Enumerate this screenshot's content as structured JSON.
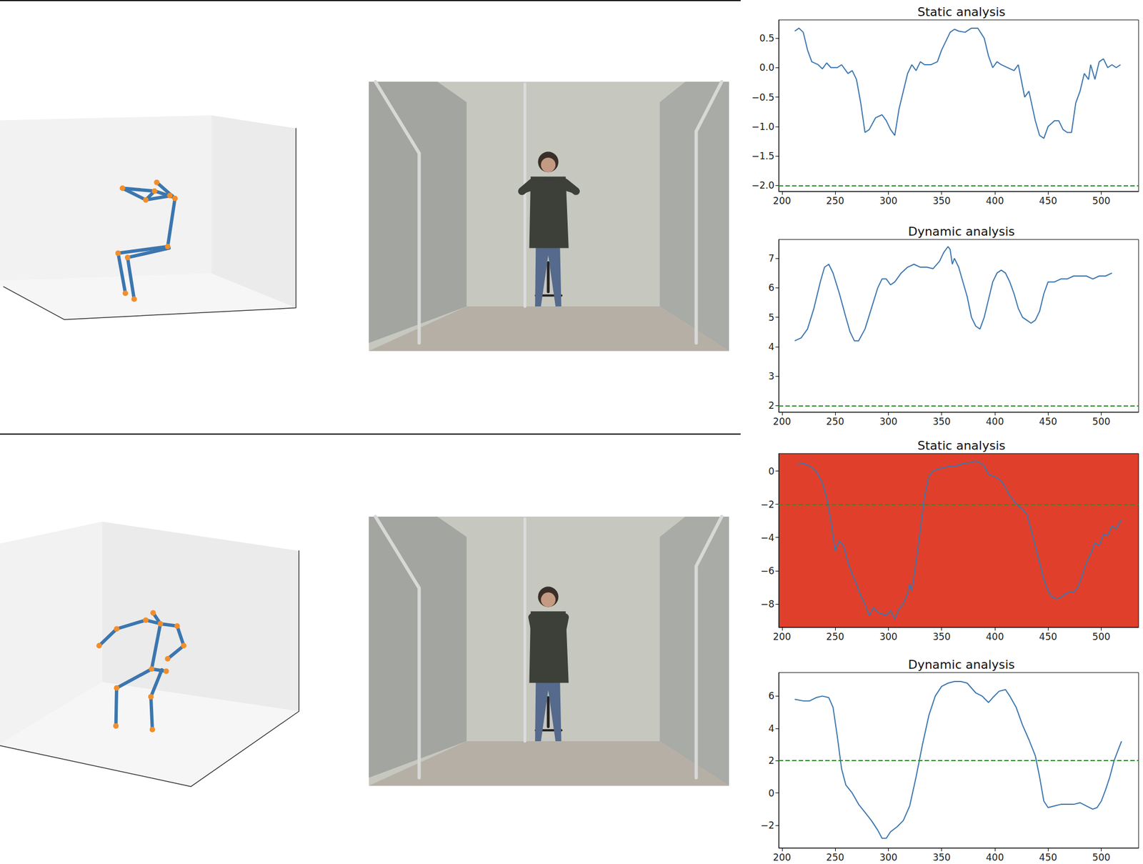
{
  "chart_data": [
    {
      "type": "line",
      "title": "Static analysis",
      "color": "#3b76af",
      "grid": false,
      "xlim": [
        197,
        535
      ],
      "xticks": [
        200,
        250,
        300,
        350,
        400,
        450,
        500
      ],
      "ylim": [
        -2.1,
        0.81
      ],
      "yticks": [
        0.5,
        {
          "value": 0,
          "label": "0.0"
        },
        {
          "value": -0.5,
          "label": "−0.5"
        },
        {
          "value": -1.0,
          "label": "−1.0"
        },
        {
          "value": -1.5,
          "label": "−1.5"
        },
        {
          "value": -2.0,
          "label": "−2.0"
        }
      ],
      "threshold": -2.0,
      "x": [
        212,
        216,
        220,
        224,
        228,
        234,
        238,
        242,
        246,
        252,
        256,
        262,
        266,
        270,
        274,
        278,
        282,
        288,
        294,
        298,
        302,
        306,
        310,
        314,
        318,
        322,
        326,
        330,
        334,
        340,
        346,
        350,
        354,
        358,
        362,
        366,
        372,
        378,
        384,
        390,
        394,
        398,
        402,
        406,
        412,
        418,
        422,
        428,
        432,
        438,
        442,
        446,
        450,
        456,
        460,
        464,
        468,
        472,
        476,
        480,
        484,
        488,
        490,
        494,
        498,
        502,
        506,
        510,
        514,
        518
      ],
      "values": [
        0.62,
        0.67,
        0.6,
        0.3,
        0.1,
        0.05,
        -0.02,
        0.08,
        0.0,
        0.0,
        0.05,
        -0.1,
        -0.05,
        -0.2,
        -0.6,
        -1.1,
        -1.05,
        -0.85,
        -0.8,
        -0.9,
        -1.05,
        -1.15,
        -0.7,
        -0.4,
        -0.1,
        0.05,
        -0.05,
        0.1,
        0.05,
        0.05,
        0.1,
        0.3,
        0.45,
        0.6,
        0.65,
        0.62,
        0.6,
        0.67,
        0.67,
        0.5,
        0.2,
        0.0,
        0.1,
        0.05,
        0.0,
        -0.05,
        0.05,
        -0.5,
        -0.4,
        -0.9,
        -1.15,
        -1.2,
        -1.0,
        -0.9,
        -0.9,
        -1.05,
        -1.1,
        -1.1,
        -0.6,
        -0.4,
        -0.1,
        -0.2,
        0.05,
        -0.2,
        0.1,
        0.15,
        0.0,
        0.05,
        0.0,
        0.05
      ]
    },
    {
      "type": "line",
      "title": "Dynamic analysis",
      "color": "#3b76af",
      "grid": false,
      "xlim": [
        197,
        535
      ],
      "xticks": [
        200,
        250,
        300,
        350,
        400,
        450,
        500
      ],
      "ylim": [
        1.78,
        7.64
      ],
      "yticks": [
        2,
        3,
        4,
        5,
        6,
        7
      ],
      "threshold": 2,
      "x": [
        212,
        218,
        224,
        230,
        236,
        240,
        244,
        248,
        254,
        260,
        264,
        268,
        272,
        278,
        284,
        290,
        294,
        298,
        302,
        306,
        312,
        318,
        324,
        330,
        336,
        342,
        348,
        352,
        356,
        358,
        360,
        362,
        366,
        370,
        374,
        378,
        382,
        386,
        390,
        394,
        398,
        402,
        406,
        410,
        414,
        418,
        422,
        426,
        430,
        434,
        438,
        442,
        446,
        450,
        456,
        462,
        468,
        474,
        480,
        486,
        492,
        498,
        504,
        510
      ],
      "values": [
        4.2,
        4.3,
        4.6,
        5.3,
        6.2,
        6.7,
        6.8,
        6.5,
        5.8,
        5.0,
        4.5,
        4.2,
        4.2,
        4.6,
        5.3,
        6.0,
        6.3,
        6.3,
        6.1,
        6.2,
        6.5,
        6.7,
        6.8,
        6.7,
        6.7,
        6.65,
        6.9,
        7.2,
        7.4,
        7.3,
        6.8,
        7.0,
        6.7,
        6.2,
        5.7,
        5.0,
        4.7,
        4.6,
        5.0,
        5.6,
        6.2,
        6.5,
        6.6,
        6.5,
        6.2,
        5.8,
        5.3,
        5.0,
        4.9,
        4.8,
        4.9,
        5.2,
        5.8,
        6.2,
        6.2,
        6.3,
        6.3,
        6.4,
        6.4,
        6.4,
        6.3,
        6.4,
        6.4,
        6.5
      ]
    },
    {
      "type": "line",
      "title": "Static analysis",
      "color": "#3b76af",
      "grid": false,
      "background_color": "#e0402b",
      "xlim": [
        197,
        535
      ],
      "xticks": [
        200,
        250,
        300,
        350,
        400,
        450,
        500
      ],
      "ylim": [
        -9.4,
        1.05
      ],
      "yticks": [
        0,
        {
          "value": -2,
          "label": "−2"
        },
        {
          "value": -4,
          "label": "−4"
        },
        {
          "value": -6,
          "label": "−6"
        },
        {
          "value": -8,
          "label": "−8"
        }
      ],
      "threshold": -2,
      "x": [
        214,
        220,
        226,
        232,
        238,
        242,
        246,
        250,
        254,
        258,
        262,
        266,
        270,
        274,
        278,
        282,
        286,
        290,
        294,
        298,
        302,
        306,
        310,
        314,
        318,
        320,
        322,
        326,
        330,
        334,
        338,
        342,
        346,
        352,
        358,
        364,
        370,
        376,
        382,
        386,
        390,
        394,
        398,
        402,
        406,
        410,
        414,
        418,
        422,
        426,
        430,
        434,
        438,
        442,
        446,
        450,
        454,
        458,
        462,
        466,
        470,
        474,
        478,
        482,
        486,
        490,
        494,
        498,
        502,
        506,
        510,
        514,
        519
      ],
      "values": [
        0.4,
        0.45,
        0.3,
        0.0,
        -0.7,
        -1.6,
        -3.0,
        -4.8,
        -4.2,
        -4.5,
        -5.5,
        -6.2,
        -6.8,
        -7.5,
        -8.0,
        -8.7,
        -8.2,
        -8.5,
        -8.6,
        -8.7,
        -8.4,
        -8.9,
        -8.3,
        -8.0,
        -7.4,
        -6.8,
        -7.2,
        -5.5,
        -3.5,
        -1.5,
        -0.3,
        0.0,
        0.1,
        0.2,
        0.3,
        0.3,
        0.45,
        0.5,
        0.6,
        0.5,
        0.3,
        -0.2,
        -0.3,
        -0.4,
        -0.6,
        -1.0,
        -1.5,
        -1.8,
        -2.1,
        -2.3,
        -2.6,
        -3.5,
        -4.5,
        -5.5,
        -6.5,
        -7.2,
        -7.6,
        -7.7,
        -7.6,
        -7.4,
        -7.3,
        -7.3,
        -7.0,
        -6.3,
        -5.5,
        -5.0,
        -4.3,
        -4.5,
        -3.8,
        -3.9,
        -3.3,
        -3.5,
        -2.9
      ]
    },
    {
      "type": "line",
      "title": "Dynamic analysis",
      "color": "#3b76af",
      "grid": false,
      "xlim": [
        197,
        535
      ],
      "xticks": [
        200,
        250,
        300,
        350,
        400,
        450,
        500
      ],
      "ylim": [
        -3.4,
        7.45
      ],
      "yticks": [
        6,
        4,
        2,
        0,
        {
          "value": -2,
          "label": "−2"
        }
      ],
      "threshold": 2,
      "x": [
        212,
        220,
        226,
        232,
        238,
        244,
        248,
        252,
        256,
        260,
        266,
        272,
        278,
        284,
        290,
        294,
        298,
        302,
        308,
        314,
        320,
        326,
        332,
        338,
        344,
        350,
        356,
        362,
        368,
        374,
        378,
        382,
        388,
        394,
        398,
        404,
        410,
        414,
        420,
        426,
        432,
        438,
        442,
        446,
        450,
        456,
        462,
        468,
        474,
        480,
        486,
        492,
        496,
        500,
        504,
        508,
        512,
        516,
        519
      ],
      "values": [
        5.8,
        5.7,
        5.7,
        5.9,
        6.0,
        5.9,
        5.3,
        3.5,
        1.5,
        0.5,
        0.0,
        -0.7,
        -1.2,
        -1.7,
        -2.3,
        -2.8,
        -2.8,
        -2.4,
        -2.1,
        -1.7,
        -0.8,
        1.0,
        3.0,
        4.8,
        6.0,
        6.6,
        6.8,
        6.9,
        6.9,
        6.8,
        6.5,
        6.2,
        6.0,
        5.6,
        5.9,
        6.3,
        6.4,
        6.0,
        5.3,
        4.2,
        3.3,
        2.3,
        1.0,
        -0.5,
        -0.9,
        -0.8,
        -0.7,
        -0.7,
        -0.7,
        -0.6,
        -0.8,
        -1.0,
        -0.9,
        -0.5,
        0.2,
        1.0,
        2.0,
        2.7,
        3.2
      ]
    }
  ]
}
